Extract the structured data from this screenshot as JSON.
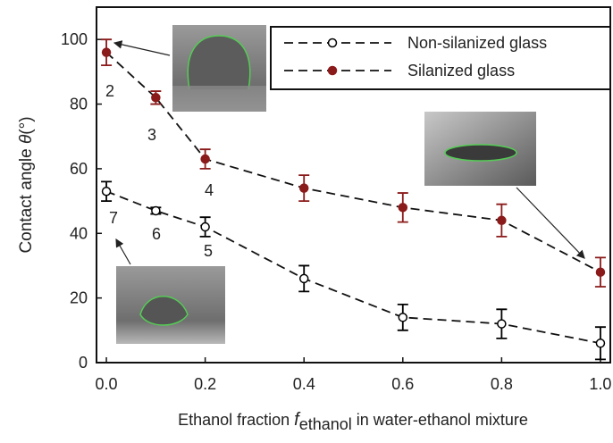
{
  "chart_data": {
    "type": "line",
    "xlabel": {
      "lead": "Ethanol fraction ",
      "symbol": "f",
      "subscript": "ethanol",
      "tail": " in water-ethanol mixture"
    },
    "ylabel": {
      "lead": "Contact angle ",
      "symbol": "θ",
      "tail": "(°)"
    },
    "x": [
      0.0,
      0.1,
      0.2,
      0.4,
      0.6,
      0.8,
      1.0
    ],
    "series": [
      {
        "name": "Non-silanized glass",
        "color": "#000000",
        "marker_fill": "#ffffff",
        "values": [
          53,
          47,
          42,
          26,
          14,
          12,
          6
        ],
        "errors": [
          3,
          1,
          3,
          4,
          4,
          4.5,
          5
        ]
      },
      {
        "name": "Silanized glass",
        "color": "#8b1a1a",
        "marker_fill": "#8b1a1a",
        "values": [
          96,
          82,
          63,
          54,
          48,
          44,
          28
        ],
        "errors": [
          4,
          2,
          3,
          4,
          4.5,
          5,
          4.5
        ]
      }
    ],
    "xlim": [
      -0.02,
      1.02
    ],
    "xticks": [
      {
        "value": 0,
        "label": "0.0"
      },
      {
        "value": 0.2,
        "label": "0.2"
      },
      {
        "value": 0.4,
        "label": "0.4"
      },
      {
        "value": 0.6,
        "label": "0.6"
      },
      {
        "value": 0.8,
        "label": "0.8"
      },
      {
        "value": 1,
        "label": "1.0"
      }
    ],
    "ylim": [
      0,
      110
    ],
    "yticks": [
      0,
      20,
      40,
      60,
      80,
      100
    ],
    "legend": "upper right",
    "annotations": [
      "2",
      "3",
      "4",
      "5",
      "6",
      "7"
    ]
  }
}
